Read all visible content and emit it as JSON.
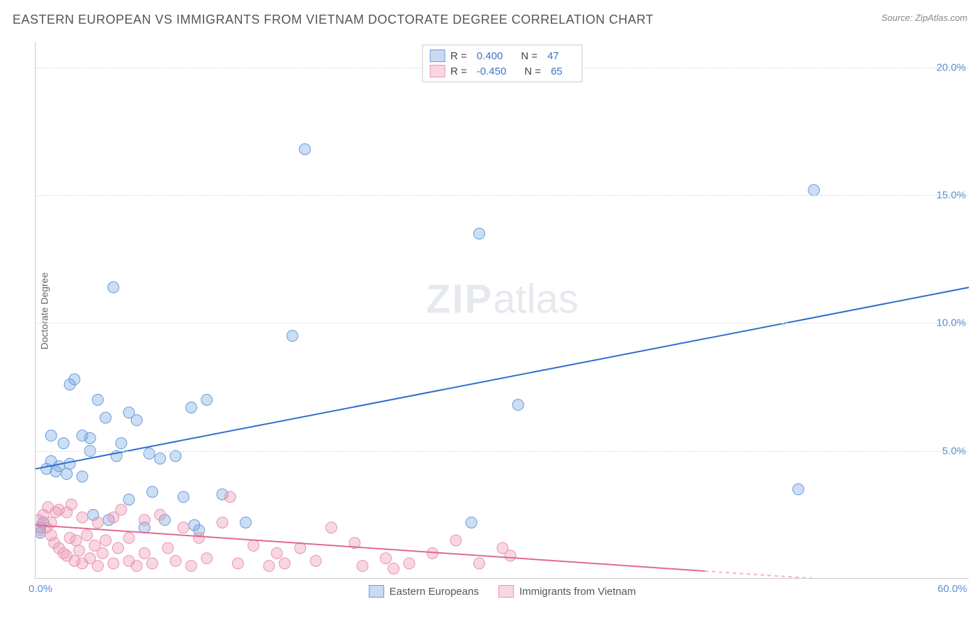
{
  "title": "EASTERN EUROPEAN VS IMMIGRANTS FROM VIETNAM DOCTORATE DEGREE CORRELATION CHART",
  "source_label": "Source: ",
  "source_name": "ZipAtlas.com",
  "ylabel": "Doctorate Degree",
  "watermark_a": "ZIP",
  "watermark_b": "atlas",
  "chart": {
    "type": "scatter",
    "xlim": [
      0,
      60
    ],
    "ylim": [
      0,
      21
    ],
    "yticks": [
      {
        "v": 5,
        "label": "5.0%"
      },
      {
        "v": 10,
        "label": "10.0%"
      },
      {
        "v": 15,
        "label": "15.0%"
      },
      {
        "v": 20,
        "label": "20.0%"
      }
    ],
    "xticks": [
      {
        "v": 0,
        "label": "0.0%"
      },
      {
        "v": 60,
        "label": "60.0%"
      }
    ],
    "grid_color": "#dddddd",
    "axis_color": "#cccccc",
    "background_color": "#ffffff",
    "marker_radius": 8,
    "marker_opacity": 0.45,
    "line_width": 2,
    "series": [
      {
        "name": "Eastern Europeans",
        "color": "#6a9bdc",
        "fill": "rgba(110,160,220,0.35)",
        "line_color": "#2e6fc9",
        "trend": {
          "x1": 0,
          "y1": 4.3,
          "x2": 60,
          "y2": 11.4
        },
        "stats": {
          "R": "0.400",
          "N": "47"
        },
        "points": [
          [
            0.3,
            2.0
          ],
          [
            0.3,
            1.8
          ],
          [
            0.5,
            2.2
          ],
          [
            0.7,
            4.3
          ],
          [
            1.0,
            4.6
          ],
          [
            1.0,
            5.6
          ],
          [
            1.3,
            4.2
          ],
          [
            1.5,
            4.4
          ],
          [
            1.8,
            5.3
          ],
          [
            2.0,
            4.1
          ],
          [
            2.2,
            4.5
          ],
          [
            2.2,
            7.6
          ],
          [
            2.5,
            7.8
          ],
          [
            3.0,
            5.6
          ],
          [
            3.0,
            4.0
          ],
          [
            3.5,
            5.5
          ],
          [
            3.5,
            5.0
          ],
          [
            3.7,
            2.5
          ],
          [
            4.0,
            7.0
          ],
          [
            4.5,
            6.3
          ],
          [
            4.7,
            2.3
          ],
          [
            5.0,
            11.4
          ],
          [
            5.2,
            4.8
          ],
          [
            5.5,
            5.3
          ],
          [
            6.0,
            6.5
          ],
          [
            6.0,
            3.1
          ],
          [
            6.5,
            6.2
          ],
          [
            7.0,
            2.0
          ],
          [
            7.3,
            4.9
          ],
          [
            7.5,
            3.4
          ],
          [
            8.0,
            4.7
          ],
          [
            8.3,
            2.3
          ],
          [
            9.0,
            4.8
          ],
          [
            9.5,
            3.2
          ],
          [
            10.0,
            6.7
          ],
          [
            10.2,
            2.1
          ],
          [
            10.5,
            1.9
          ],
          [
            11.0,
            7.0
          ],
          [
            12.0,
            3.3
          ],
          [
            13.5,
            2.2
          ],
          [
            16.5,
            9.5
          ],
          [
            17.3,
            16.8
          ],
          [
            28.0,
            2.2
          ],
          [
            28.5,
            13.5
          ],
          [
            31.0,
            6.8
          ],
          [
            49.0,
            3.5
          ],
          [
            50.0,
            15.2
          ]
        ]
      },
      {
        "name": "Immigrants from Vietnam",
        "color": "#e994b0",
        "fill": "rgba(235,150,180,0.38)",
        "line_color": "#e06a94",
        "trend": {
          "x1": 0,
          "y1": 2.1,
          "x2": 43,
          "y2": 0.3
        },
        "trend_dash": {
          "x1": 43,
          "y1": 0.3,
          "x2": 60,
          "y2": -0.4
        },
        "stats": {
          "R": "-0.450",
          "N": "65"
        },
        "points": [
          [
            0.2,
            2.3
          ],
          [
            0.3,
            1.9
          ],
          [
            0.5,
            2.5
          ],
          [
            0.7,
            2.0
          ],
          [
            0.8,
            2.8
          ],
          [
            1.0,
            1.7
          ],
          [
            1.0,
            2.2
          ],
          [
            1.2,
            1.4
          ],
          [
            1.3,
            2.6
          ],
          [
            1.5,
            1.2
          ],
          [
            1.5,
            2.7
          ],
          [
            1.8,
            1.0
          ],
          [
            2.0,
            2.6
          ],
          [
            2.0,
            0.9
          ],
          [
            2.2,
            1.6
          ],
          [
            2.3,
            2.9
          ],
          [
            2.5,
            0.7
          ],
          [
            2.6,
            1.5
          ],
          [
            2.8,
            1.1
          ],
          [
            3.0,
            2.4
          ],
          [
            3.0,
            0.6
          ],
          [
            3.3,
            1.7
          ],
          [
            3.5,
            0.8
          ],
          [
            3.8,
            1.3
          ],
          [
            4.0,
            2.2
          ],
          [
            4.0,
            0.5
          ],
          [
            4.3,
            1.0
          ],
          [
            4.5,
            1.5
          ],
          [
            5.0,
            2.4
          ],
          [
            5.0,
            0.6
          ],
          [
            5.3,
            1.2
          ],
          [
            5.5,
            2.7
          ],
          [
            6.0,
            0.7
          ],
          [
            6.0,
            1.6
          ],
          [
            6.5,
            0.5
          ],
          [
            7.0,
            2.3
          ],
          [
            7.0,
            1.0
          ],
          [
            7.5,
            0.6
          ],
          [
            8.0,
            2.5
          ],
          [
            8.5,
            1.2
          ],
          [
            9.0,
            0.7
          ],
          [
            9.5,
            2.0
          ],
          [
            10.0,
            0.5
          ],
          [
            10.5,
            1.6
          ],
          [
            11.0,
            0.8
          ],
          [
            12.0,
            2.2
          ],
          [
            12.5,
            3.2
          ],
          [
            13.0,
            0.6
          ],
          [
            14.0,
            1.3
          ],
          [
            15.0,
            0.5
          ],
          [
            15.5,
            1.0
          ],
          [
            16.0,
            0.6
          ],
          [
            17.0,
            1.2
          ],
          [
            18.0,
            0.7
          ],
          [
            19.0,
            2.0
          ],
          [
            20.5,
            1.4
          ],
          [
            21.0,
            0.5
          ],
          [
            22.5,
            0.8
          ],
          [
            23.0,
            0.4
          ],
          [
            24.0,
            0.6
          ],
          [
            25.5,
            1.0
          ],
          [
            27.0,
            1.5
          ],
          [
            28.5,
            0.6
          ],
          [
            30.0,
            1.2
          ],
          [
            30.5,
            0.9
          ]
        ]
      }
    ]
  },
  "legend_top": {
    "r_label": "R =",
    "n_label": "N ="
  },
  "legend_bottom": [
    {
      "swatch": "blue",
      "label": "Eastern Europeans"
    },
    {
      "swatch": "pink",
      "label": "Immigrants from Vietnam"
    }
  ]
}
